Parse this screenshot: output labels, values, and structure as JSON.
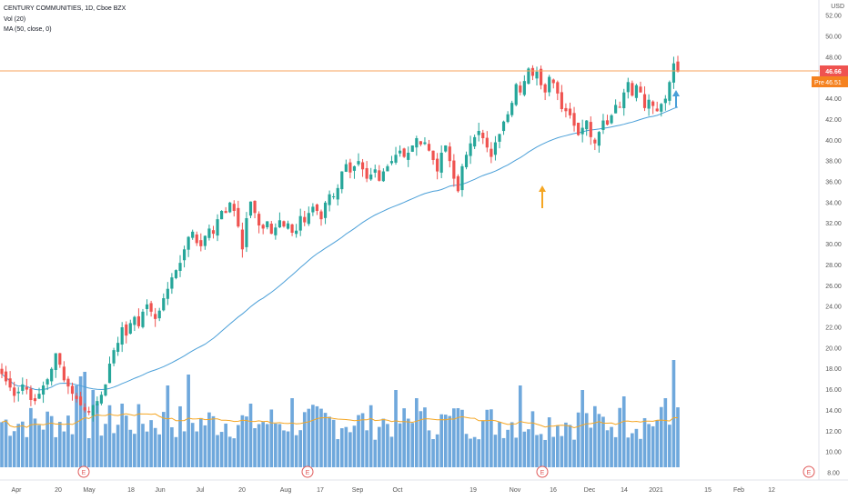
{
  "header": {
    "title": "CENTURY COMMUNITIES, 1D, Cboe BZX",
    "vol_label": "Vol (20)",
    "ma_label": "MA (50, close, 0)",
    "currency": "USD"
  },
  "price_tags": {
    "last": "46.66",
    "pre_prefix": "Pre",
    "pre": "46.51"
  },
  "colors": {
    "up": "#26a69a",
    "down": "#ef5350",
    "volume": "#6fa8dc",
    "ma": "#4a9fd8",
    "vol_ma": "#f5a623",
    "price_line": "#f7a35c",
    "pre_tag": "#f58220",
    "last_tag": "#ef5350",
    "arrow_orange": "#f5a623",
    "arrow_blue": "#4a9fd8",
    "earnings": "#e05b5b"
  },
  "chart_data": {
    "type": "candlestick",
    "y_axis": {
      "ticks": [
        "8.00",
        "10.00",
        "12.00",
        "14.00",
        "16.00",
        "18.00",
        "20.00",
        "22.00",
        "24.00",
        "26.00",
        "28.00",
        "30.00",
        "32.00",
        "34.00",
        "36.00",
        "38.00",
        "40.00",
        "42.00",
        "44.00",
        "46.00",
        "48.00",
        "50.00",
        "52.00"
      ],
      "range": [
        7,
        53
      ]
    },
    "x_axis": {
      "ticks": [
        "Apr",
        "20",
        "May",
        "18",
        "Jun",
        "Jul",
        "20",
        "Aug",
        "17",
        "Sep",
        "Oct",
        "19",
        "Nov",
        "16",
        "Dec",
        "14",
        "2021",
        "15",
        "Feb",
        "12"
      ]
    },
    "closes": [
      17.5,
      16.8,
      16.2,
      15.4,
      15.8,
      16.5,
      16.0,
      15.0,
      14.9,
      15.6,
      16.4,
      17.0,
      18.0,
      19.5,
      18.4,
      16.9,
      16.3,
      15.6,
      15.1,
      14.5,
      14.0,
      13.8,
      14.5,
      14.9,
      15.5,
      16.5,
      18.5,
      19.8,
      20.5,
      22.0,
      21.2,
      22.4,
      23.0,
      22.1,
      23.5,
      24.2,
      23.5,
      22.8,
      23.6,
      24.8,
      25.7,
      26.8,
      27.5,
      28.2,
      29.5,
      30.7,
      31.2,
      30.1,
      29.8,
      30.8,
      31.5,
      31.0,
      32.4,
      33.2,
      33.0,
      34.0,
      33.2,
      31.7,
      29.5,
      32.5,
      34.1,
      33.0,
      31.8,
      31.5,
      32.2,
      31.0,
      31.6,
      32.3,
      31.7,
      32.0,
      31.1,
      31.3,
      32.7,
      32.1,
      33.0,
      33.6,
      33.2,
      32.4,
      34.0,
      34.8,
      34.6,
      35.4,
      37.0,
      37.7,
      36.9,
      37.5,
      38.0,
      37.2,
      36.3,
      36.7,
      37.2,
      36.1,
      37.0,
      37.5,
      38.0,
      38.6,
      39.0,
      38.4,
      38.8,
      39.5,
      40.2,
      39.6,
      39.8,
      39.0,
      38.1,
      37.0,
      38.8,
      39.5,
      38.0,
      36.3,
      35.1,
      37.5,
      38.6,
      39.7,
      40.3,
      40.9,
      40.2,
      39.3,
      38.4,
      39.8,
      40.6,
      41.8,
      42.5,
      43.6,
      45.4,
      44.6,
      45.7,
      46.9,
      46.2,
      46.6,
      45.3,
      44.6,
      46.1,
      45.5,
      44.5,
      43.0,
      42.8,
      42.4,
      41.4,
      40.5,
      41.2,
      41.9,
      40.3,
      39.7,
      40.8,
      41.9,
      41.5,
      42.4,
      43.4,
      43.2,
      44.6,
      45.6,
      44.3,
      45.3,
      44.6,
      43.1,
      43.9,
      43.3,
      42.8,
      43.5,
      44.0,
      45.6,
      47.4,
      46.6
    ],
    "volume_scale_note": "volume plotted in same pane, units unlabeled",
    "annotations": [
      "E",
      "E",
      "E",
      "E"
    ]
  }
}
